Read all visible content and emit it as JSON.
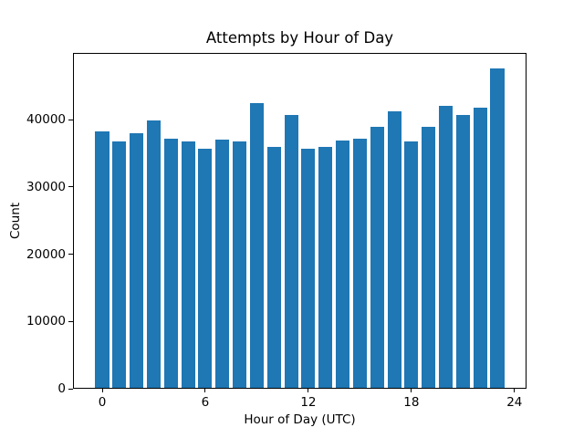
{
  "chart_data": {
    "type": "bar",
    "title": "Attempts by Hour of Day",
    "xlabel": "Hour of Day (UTC)",
    "ylabel": "Count",
    "categories": [
      0,
      1,
      2,
      3,
      4,
      5,
      6,
      7,
      8,
      9,
      10,
      11,
      12,
      13,
      14,
      15,
      16,
      17,
      18,
      19,
      20,
      21,
      22,
      23
    ],
    "values": [
      38300,
      36700,
      37900,
      39900,
      37200,
      36800,
      35600,
      37000,
      36700,
      42400,
      36000,
      40700,
      35700,
      35900,
      36900,
      37200,
      38900,
      41200,
      36700,
      38900,
      42000,
      40700,
      41700,
      47600
    ],
    "bar_color": "#1f77b4",
    "bar_width": 0.8,
    "xlim": [
      -1.7,
      24.7
    ],
    "ylim": [
      0,
      49900
    ],
    "xticks": [
      0,
      6,
      12,
      18,
      24
    ],
    "yticks": [
      0,
      10000,
      20000,
      30000,
      40000
    ],
    "grid": false,
    "legend": null,
    "background_color": "#ffffff",
    "frame_color": "#000000"
  }
}
